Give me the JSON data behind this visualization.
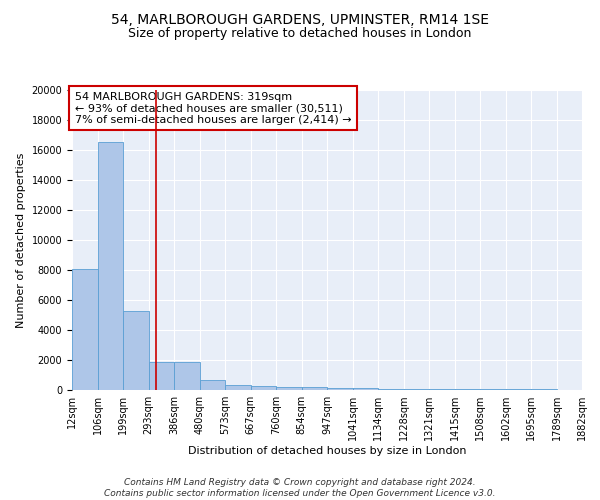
{
  "title1": "54, MARLBOROUGH GARDENS, UPMINSTER, RM14 1SE",
  "title2": "Size of property relative to detached houses in London",
  "xlabel": "Distribution of detached houses by size in London",
  "ylabel": "Number of detached properties",
  "bar_values": [
    8100,
    16500,
    5300,
    1900,
    1850,
    700,
    350,
    250,
    200,
    175,
    150,
    125,
    100,
    90,
    80,
    70,
    60,
    50,
    40,
    30
  ],
  "bin_edges": [
    12,
    106,
    199,
    293,
    386,
    480,
    573,
    667,
    760,
    854,
    947,
    1041,
    1134,
    1228,
    1321,
    1415,
    1508,
    1602,
    1695,
    1789,
    1882
  ],
  "tick_labels": [
    "12sqm",
    "106sqm",
    "199sqm",
    "293sqm",
    "386sqm",
    "480sqm",
    "573sqm",
    "667sqm",
    "760sqm",
    "854sqm",
    "947sqm",
    "1041sqm",
    "1134sqm",
    "1228sqm",
    "1321sqm",
    "1415sqm",
    "1508sqm",
    "1602sqm",
    "1695sqm",
    "1789sqm",
    "1882sqm"
  ],
  "bar_color": "#aec6e8",
  "bar_edge_color": "#5a9fd4",
  "background_color": "#e8eef8",
  "grid_color": "#ffffff",
  "vline_color": "#cc0000",
  "annotation_text": "54 MARLBOROUGH GARDENS: 319sqm\n← 93% of detached houses are smaller (30,511)\n7% of semi-detached houses are larger (2,414) →",
  "annotation_box_color": "#ffffff",
  "annotation_box_edge": "#cc0000",
  "ylim": [
    0,
    20000
  ],
  "yticks": [
    0,
    2000,
    4000,
    6000,
    8000,
    10000,
    12000,
    14000,
    16000,
    18000,
    20000
  ],
  "footnote": "Contains HM Land Registry data © Crown copyright and database right 2024.\nContains public sector information licensed under the Open Government Licence v3.0.",
  "title_fontsize": 10,
  "subtitle_fontsize": 9,
  "axis_label_fontsize": 8,
  "tick_fontsize": 7,
  "annotation_fontsize": 8,
  "footnote_fontsize": 6.5
}
